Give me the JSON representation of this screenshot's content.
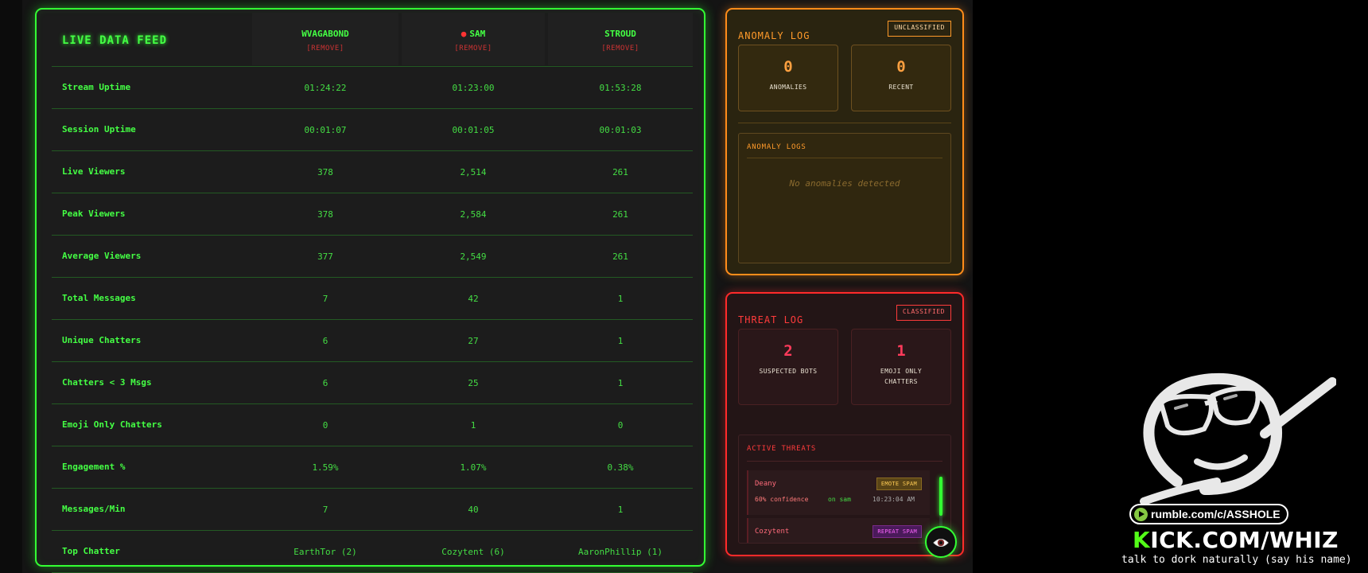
{
  "feed": {
    "title": "LIVE DATA FEED",
    "columns": [
      {
        "name": "WVAGABOND",
        "remove": "[REMOVE]",
        "live": false
      },
      {
        "name": "SAM",
        "remove": "[REMOVE]",
        "live": true
      },
      {
        "name": "STROUD",
        "remove": "[REMOVE]",
        "live": false
      }
    ],
    "rows": [
      {
        "label": "Stream Uptime",
        "values": [
          "01:24:22",
          "01:23:00",
          "01:53:28"
        ]
      },
      {
        "label": "Session Uptime",
        "values": [
          "00:01:07",
          "00:01:05",
          "00:01:03"
        ]
      },
      {
        "label": "Live Viewers",
        "values": [
          "378",
          "2,514",
          "261"
        ]
      },
      {
        "label": "Peak Viewers",
        "values": [
          "378",
          "2,584",
          "261"
        ]
      },
      {
        "label": "Average Viewers",
        "values": [
          "377",
          "2,549",
          "261"
        ]
      },
      {
        "label": "Total Messages",
        "values": [
          "7",
          "42",
          "1"
        ]
      },
      {
        "label": "Unique Chatters",
        "values": [
          "6",
          "27",
          "1"
        ]
      },
      {
        "label": "Chatters < 3 Msgs",
        "values": [
          "6",
          "25",
          "1"
        ]
      },
      {
        "label": "Emoji Only Chatters",
        "values": [
          "0",
          "1",
          "0"
        ]
      },
      {
        "label": "Engagement %",
        "values": [
          "1.59%",
          "1.07%",
          "0.38%"
        ]
      },
      {
        "label": "Messages/Min",
        "values": [
          "7",
          "40",
          "1"
        ]
      },
      {
        "label": "Top Chatter",
        "values": [
          "EarthTor (2)",
          "Cozytent (6)",
          "AaronPhillip (1)"
        ]
      }
    ]
  },
  "anomaly": {
    "title": "ANOMALY LOG",
    "badge": "UNCLASSIFIED",
    "stats": [
      {
        "value": "0",
        "label": "ANOMALIES"
      },
      {
        "value": "0",
        "label": "RECENT"
      }
    ],
    "logs_title": "ANOMALY LOGS",
    "logs_empty": "No anomalies detected"
  },
  "threat": {
    "title": "THREAT LOG",
    "badge": "CLASSIFIED",
    "stats": [
      {
        "value": "2",
        "label": "SUSPECTED BOTS"
      },
      {
        "value": "1",
        "label": "EMOJI ONLY CHATTERS"
      }
    ],
    "active_title": "ACTIVE THREATS",
    "items": [
      {
        "user": "Deany",
        "tag": "EMOTE SPAM",
        "confidence": "60% confidence",
        "on": "on sam",
        "time": "10:23:04 AM"
      },
      {
        "user": "Cozytent",
        "tag": "REPEAT SPAM"
      }
    ],
    "scroll_fraction": 0.7
  },
  "overlay": {
    "rumble": "rumble.com/c/ASSHOLE",
    "kick_k": "K",
    "kick_rest": "ICK.COM/WHIZ",
    "talk": "talk to dork naturally (say his name)"
  },
  "icons": {
    "eye_button": "eye-icon",
    "mascot": "sunglasses-face-icon",
    "rumble": "rumble-play-icon",
    "live_dot": "red-dot-icon"
  },
  "colors": {
    "feed_accent": "#33ff33",
    "anomaly_accent": "#ff8c1a",
    "threat_accent": "#ff2a2a",
    "kick_green": "#53fc18",
    "rumble_green": "#85c742"
  }
}
